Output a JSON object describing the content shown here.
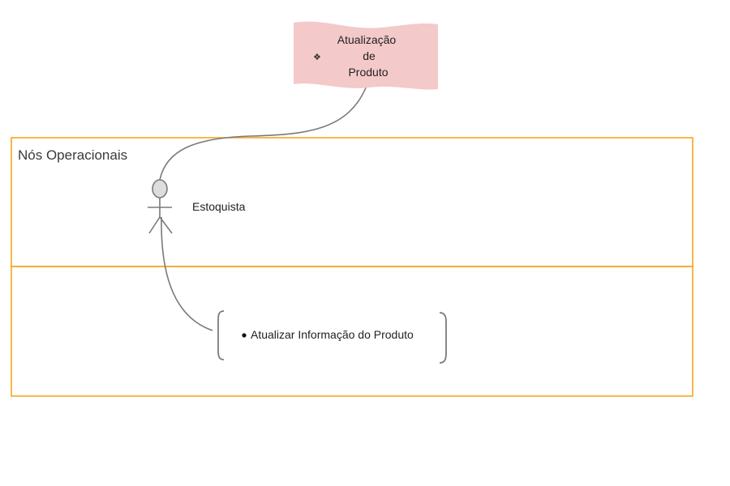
{
  "note": {
    "lines": [
      "Atualização",
      "de",
      "Produto"
    ],
    "fill_color": "#f4c9c9",
    "bullet_icon": "diamond-bullet-icon"
  },
  "swimlane": {
    "title": "Nós Operacionais",
    "border_color": "#f5a623"
  },
  "actor": {
    "name": "Estoquista",
    "icon": "stick-figure-icon"
  },
  "activity": {
    "label": "Atualizar Informação do Produto",
    "bullet_icon": "dot-bullet-icon"
  },
  "connector_color": "#7a7a7a"
}
